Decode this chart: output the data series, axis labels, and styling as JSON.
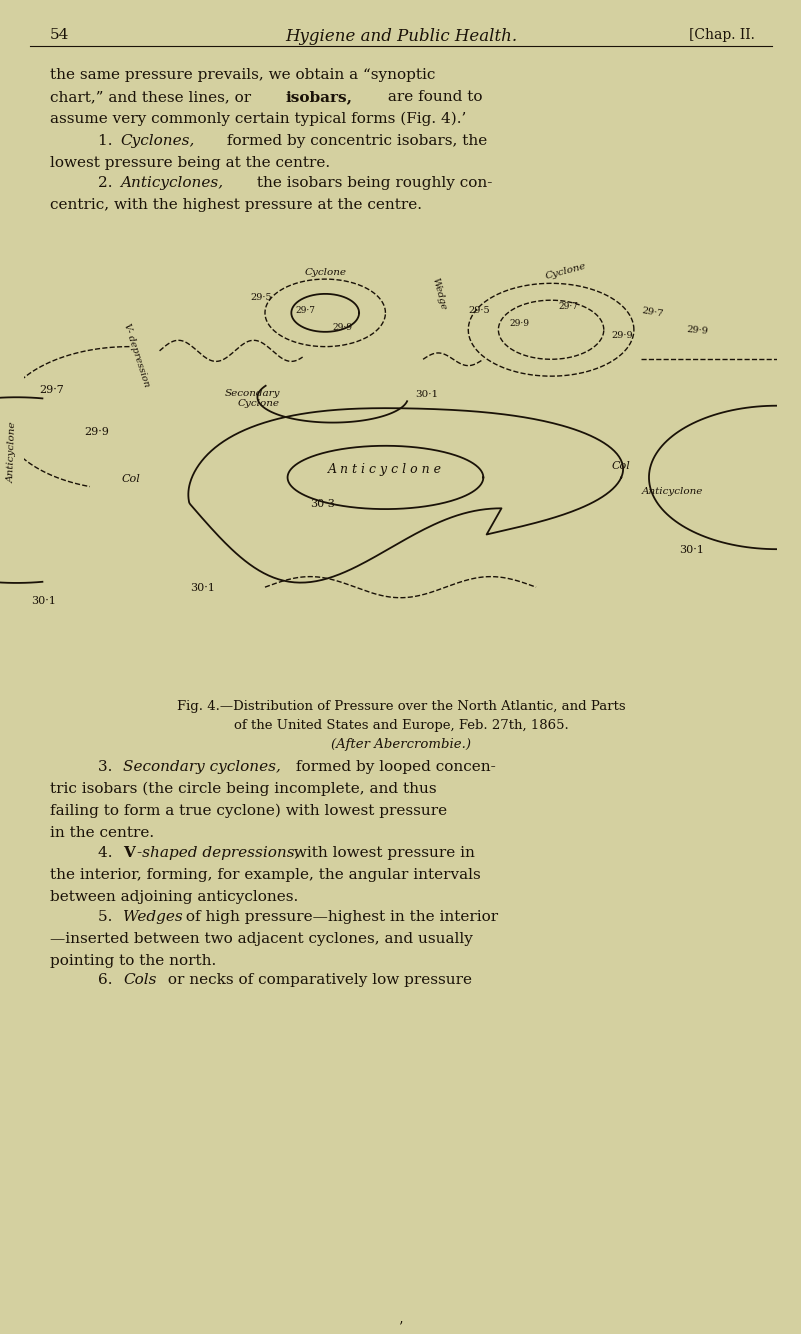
{
  "bg_color": "#d4d0a0",
  "text_color": "#1a1208",
  "page_number": "54",
  "header_title": "Hygiene and Public Health.",
  "header_right": "[Chap. II.",
  "line1": "the same pressure prevails, we obtain a “synoptic",
  "line2a": "chart,” and these lines, or ",
  "line2b": "isobars,",
  "line2c": " are found to",
  "line3": "assume very commonly certain typical forms (Fig. 4).’",
  "item1a": "1. ",
  "item1b": "Cyclones,",
  "item1c": " formed by concentric isobars, the",
  "item1d": "lowest pressure being at the centre.",
  "item2a": "2. ",
  "item2b": "Anticyclones,",
  "item2c": " the isobars being roughly con-",
  "item2d": "centric, with the highest pressure at the centre.",
  "fig_caption_line1": "Fig. 4.—Distribution of Pressure over the North Atlantic, and Parts",
  "fig_caption_line2": "of the United States and Europe, Feb. 27th, 1865.",
  "fig_caption_line3": "(After Abercrombie.)",
  "item3a": "3. ",
  "item3b": "Secondary cyclones,",
  "item3c": " formed by looped concen-",
  "item3d": "tric isobars (the circle being incomplete, and thus",
  "item3e": "failing to form a true cyclone) with lowest pressure",
  "item3f": "in the centre.",
  "item4a": "4. ",
  "item4b": "V",
  "item4c": "-shaped depressions,",
  "item4d": " with lowest pressure in",
  "item4e": "the interior, forming, for example, the angular intervals",
  "item4f": "between adjoining anticyclones.",
  "item5a": "5. ",
  "item5b": "Wedges",
  "item5c": " of high pressure—highest in the interior",
  "item5d": "—inserted between two adjacent cyclones, and usually",
  "item5e": "pointing to the north.",
  "item6a": "6. ",
  "item6b": "Cols",
  "item6c": " or necks of comparatively low pressure"
}
